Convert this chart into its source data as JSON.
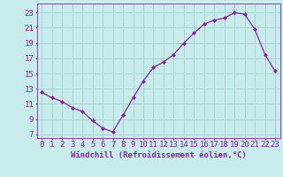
{
  "x": [
    0,
    1,
    2,
    3,
    4,
    5,
    6,
    7,
    8,
    9,
    10,
    11,
    12,
    13,
    14,
    15,
    16,
    17,
    18,
    19,
    20,
    21,
    22,
    23
  ],
  "y": [
    12.5,
    11.8,
    11.3,
    10.5,
    10.0,
    8.8,
    7.8,
    7.3,
    9.5,
    11.8,
    14.0,
    15.8,
    16.5,
    17.5,
    19.0,
    20.3,
    21.5,
    22.0,
    22.3,
    23.0,
    22.8,
    20.8,
    17.5,
    15.3
  ],
  "line_color": "#882299",
  "marker": "D",
  "marker_size": 2.0,
  "bg_color": "#c8ecec",
  "grid_color": "#aad4d4",
  "xlabel": "Windchill (Refroidissement éolien,°C)",
  "ylabel_ticks": [
    7,
    9,
    11,
    13,
    15,
    17,
    19,
    21,
    23
  ],
  "xlim": [
    -0.5,
    23.5
  ],
  "ylim": [
    6.5,
    24.2
  ],
  "xticks": [
    0,
    1,
    2,
    3,
    4,
    5,
    6,
    7,
    8,
    9,
    10,
    11,
    12,
    13,
    14,
    15,
    16,
    17,
    18,
    19,
    20,
    21,
    22,
    23
  ],
  "xlabel_fontsize": 6.5,
  "tick_fontsize": 6.5,
  "tick_color": "#882299",
  "axis_color": "#882299"
}
